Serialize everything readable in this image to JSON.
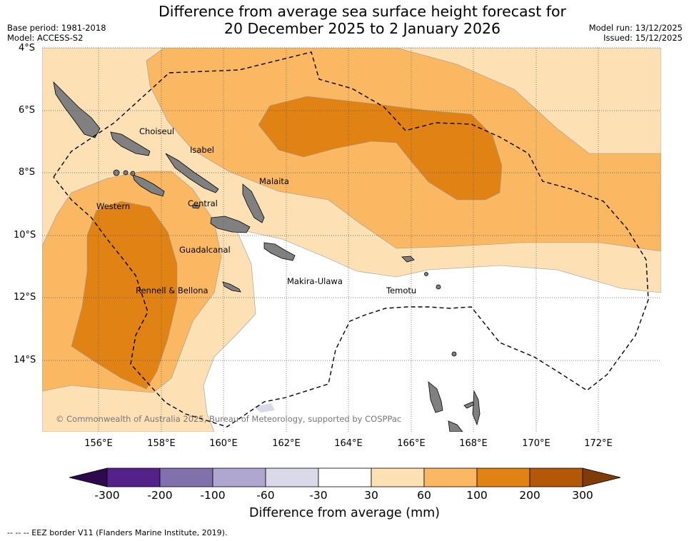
{
  "header": {
    "title_line1": "Difference from average sea surface height forecast for",
    "title_line2": "20 December 2025 to 2 January 2026",
    "base_period": "Base period: 1981-2018",
    "model": "Model: ACCESS-S2",
    "model_run": "Model run: 13/12/2025",
    "issued": "Issued: 15/12/2025"
  },
  "map": {
    "lat_labels": [
      "4°S",
      "6°S",
      "8°S",
      "10°S",
      "12°S",
      "14°S"
    ],
    "lon_labels": [
      "156°E",
      "158°E",
      "160°E",
      "162°E",
      "164°E",
      "166°E",
      "168°E",
      "170°E",
      "172°E"
    ],
    "regions": {
      "choiseul": "Choiseul",
      "isabel": "Isabel",
      "malaita": "Malaita",
      "western": "Western",
      "central": "Central",
      "guadalcanal": "Guadalcanal",
      "makira": "Makira-Ulawa",
      "rennell": "Rennell & Bellona",
      "temotu": "Temotu"
    },
    "copyright": "© Commonwealth of Australia 2025, Bureau of Meteorology, supported by COSPPac",
    "land_color": "#808080",
    "eez_style": "dashed"
  },
  "colorbar": {
    "ticks": [
      "-300",
      "-200",
      "-100",
      "-60",
      "-30",
      "30",
      "60",
      "100",
      "200",
      "300"
    ],
    "colors": [
      "#2d0a4e",
      "#54218a",
      "#8070ac",
      "#afa7d0",
      "#d9d9ea",
      "#ffffff",
      "#fee0b5",
      "#fbb862",
      "#e08214",
      "#b35806",
      "#7f3b08"
    ],
    "label": "Difference from average (mm)"
  },
  "footer": {
    "eez_note": "--  --  -- EEZ border V11 (Flanders Marine Institute, 2019)."
  }
}
